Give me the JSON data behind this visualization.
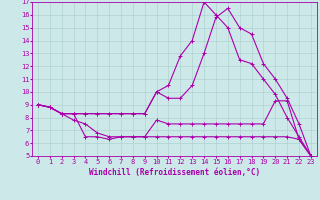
{
  "title": "",
  "xlabel": "Windchill (Refroidissement éolien,°C)",
  "ylabel": "",
  "xlim": [
    -0.5,
    23.5
  ],
  "ylim": [
    5,
    17
  ],
  "yticks": [
    5,
    6,
    7,
    8,
    9,
    10,
    11,
    12,
    13,
    14,
    15,
    16,
    17
  ],
  "xticks": [
    0,
    1,
    2,
    3,
    4,
    5,
    6,
    7,
    8,
    9,
    10,
    11,
    12,
    13,
    14,
    15,
    16,
    17,
    18,
    19,
    20,
    21,
    22,
    23
  ],
  "line_color": "#aa00aa",
  "bg_color": "#cce8e8",
  "grid_color": "#aacccc",
  "line1_x": [
    0,
    1,
    2,
    3,
    4,
    5,
    6,
    7,
    8,
    9,
    10,
    11,
    12,
    13,
    14,
    15,
    16,
    17,
    18,
    19,
    20,
    21,
    22,
    23
  ],
  "line1_y": [
    9,
    8.8,
    8.3,
    8.3,
    6.5,
    6.5,
    6.3,
    6.5,
    6.5,
    6.5,
    6.5,
    6.5,
    6.5,
    6.5,
    6.5,
    6.5,
    6.5,
    6.5,
    6.5,
    6.5,
    6.5,
    6.5,
    6.3,
    5.0
  ],
  "line2_x": [
    0,
    1,
    2,
    3,
    4,
    5,
    6,
    7,
    8,
    9,
    10,
    11,
    12,
    13,
    14,
    15,
    16,
    17,
    18,
    19,
    20,
    21,
    22,
    23
  ],
  "line2_y": [
    9,
    8.8,
    8.3,
    7.8,
    7.5,
    6.8,
    6.5,
    6.5,
    6.5,
    6.5,
    7.8,
    7.5,
    7.5,
    7.5,
    7.5,
    7.5,
    7.5,
    7.5,
    7.5,
    7.5,
    9.3,
    9.3,
    6.3,
    5.0
  ],
  "line3_x": [
    0,
    1,
    2,
    3,
    4,
    5,
    6,
    7,
    8,
    9,
    10,
    11,
    12,
    13,
    14,
    15,
    16,
    17,
    18,
    19,
    20,
    21,
    22,
    23
  ],
  "line3_y": [
    9,
    8.8,
    8.3,
    8.3,
    8.3,
    8.3,
    8.3,
    8.3,
    8.3,
    8.3,
    10.0,
    9.5,
    9.5,
    10.5,
    13.0,
    15.8,
    16.5,
    15.0,
    14.5,
    12.2,
    11.0,
    9.5,
    7.5,
    5.0
  ],
  "line4_x": [
    0,
    1,
    2,
    3,
    4,
    5,
    6,
    7,
    8,
    9,
    10,
    11,
    12,
    13,
    14,
    15,
    16,
    17,
    18,
    19,
    20,
    21,
    22,
    23
  ],
  "line4_y": [
    9,
    8.8,
    8.3,
    8.3,
    8.3,
    8.3,
    8.3,
    8.3,
    8.3,
    8.3,
    10.0,
    10.5,
    12.8,
    14.0,
    17.0,
    16.0,
    15.0,
    12.5,
    12.2,
    11.0,
    9.8,
    8.0,
    6.5,
    5.0
  ],
  "marker": "+",
  "marker_size": 3,
  "linewidth": 0.8,
  "xlabel_fontsize": 5.5,
  "tick_fontsize": 5
}
